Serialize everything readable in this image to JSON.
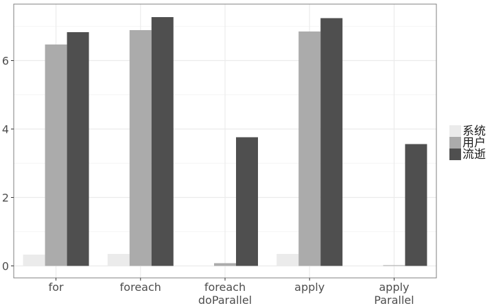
{
  "chart_data": {
    "type": "bar",
    "categories": [
      [
        "for"
      ],
      [
        "foreach"
      ],
      [
        "foreach",
        "doParallel"
      ],
      [
        "apply"
      ],
      [
        "apply",
        "Parallel"
      ]
    ],
    "series": [
      {
        "name": "系统",
        "color": "#ebebeb",
        "values": [
          0.33,
          0.35,
          0.0,
          0.35,
          0.0
        ]
      },
      {
        "name": "用户",
        "color": "#ababab",
        "values": [
          6.47,
          6.89,
          0.08,
          6.85,
          0.02
        ]
      },
      {
        "name": "流逝",
        "color": "#4f4f4f",
        "values": [
          6.83,
          7.27,
          3.76,
          7.24,
          3.56
        ]
      }
    ],
    "title": "",
    "xlabel": "",
    "ylabel": "",
    "ylim": [
      -0.35,
      7.65
    ],
    "yticks": [
      0,
      2,
      4,
      6
    ],
    "ytick_labels": [
      "0",
      "2",
      "4",
      "6"
    ],
    "grid": true,
    "legend_position": "right",
    "panel_border_color": "#7f7f7f",
    "grid_color": "#ebebeb"
  }
}
